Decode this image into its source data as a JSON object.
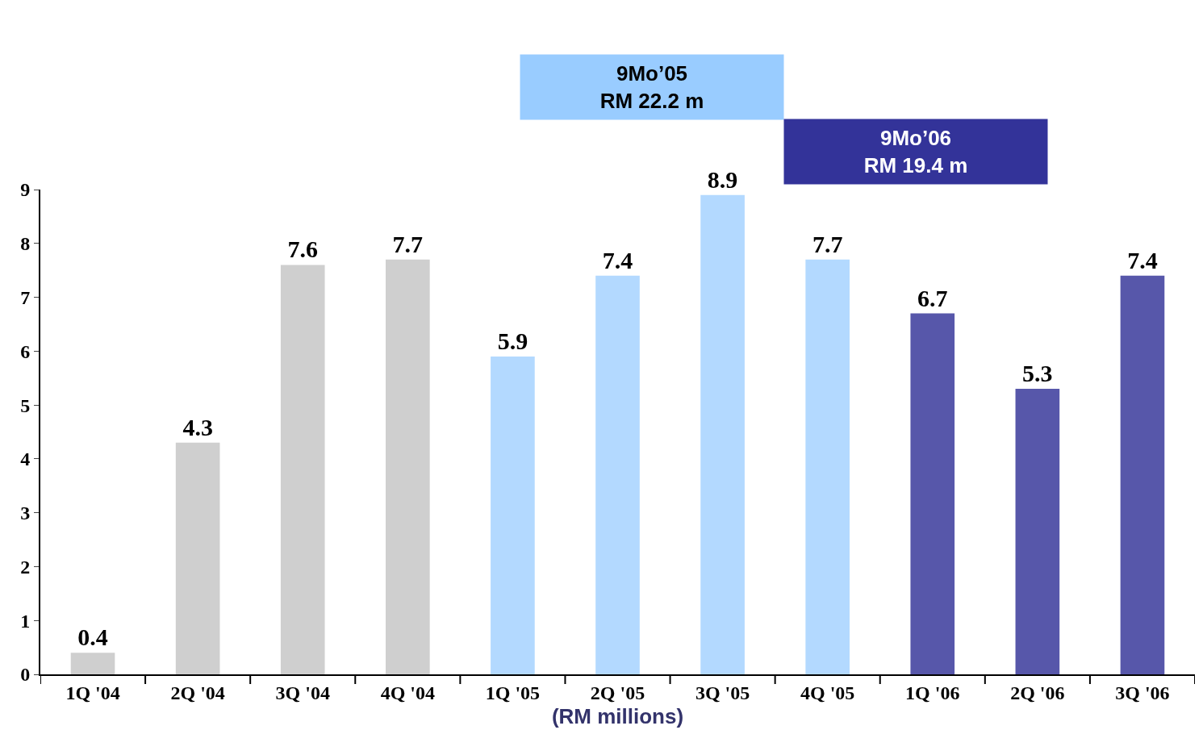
{
  "chart_data": {
    "type": "bar",
    "categories": [
      "1Q '04",
      "2Q '04",
      "3Q '04",
      "4Q '04",
      "1Q '05",
      "2Q '05",
      "3Q '05",
      "4Q '05",
      "1Q '06",
      "2Q '06",
      "3Q '06"
    ],
    "values": [
      0.4,
      4.3,
      7.6,
      7.7,
      5.9,
      7.4,
      8.9,
      7.7,
      6.7,
      5.3,
      7.4
    ],
    "colors": [
      "#cfcfcf",
      "#cfcfcf",
      "#cfcfcf",
      "#cfcfcf",
      "#b3d9ff",
      "#b3d9ff",
      "#b3d9ff",
      "#b3d9ff",
      "#5757aa",
      "#5757aa",
      "#5757aa"
    ],
    "ylim": [
      0,
      9
    ],
    "yticks": [
      0,
      1,
      2,
      3,
      4,
      5,
      6,
      7,
      8,
      9
    ],
    "xlabel": "(RM millions)",
    "annotations": [
      "9Mo’05\nRM 22.2 m",
      "9Mo’06\nRM 19.4 m"
    ],
    "data_labels": true
  }
}
